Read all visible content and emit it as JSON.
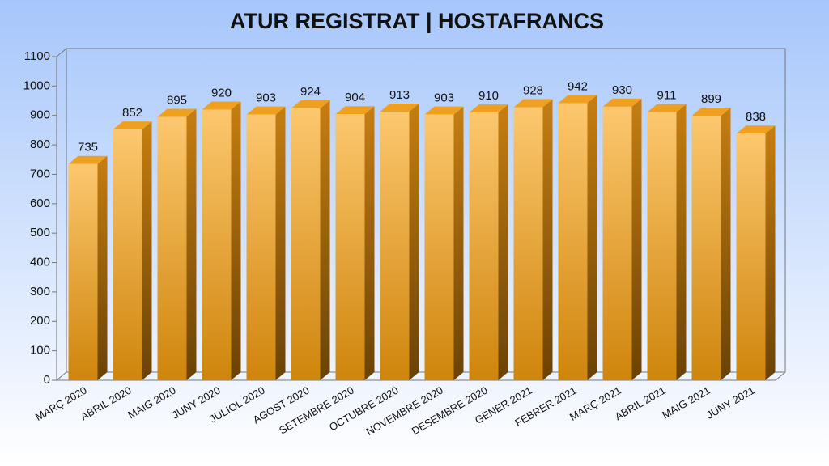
{
  "chart_data": {
    "type": "bar3d",
    "title": "ATUR REGISTRAT  |  HOSTAFRANCS",
    "categories": [
      "MARÇ 2020",
      "ABRIL 2020",
      "MAIG 2020",
      "JUNY 2020",
      "JULIOL 2020",
      "AGOST 2020",
      "SETEMBRE 2020",
      "OCTUBRE 2020",
      "NOVEMBRE 2020",
      "DESEMBRE 2020",
      "GENER 2021",
      "FEBRER 2021",
      "MARÇ 2021",
      "ABRIL 2021",
      "MAIG 2021",
      "JUNY 2021"
    ],
    "values": [
      735,
      852,
      895,
      920,
      903,
      924,
      904,
      913,
      903,
      910,
      928,
      942,
      930,
      911,
      899,
      838
    ],
    "color": "#f0a020",
    "ylim": [
      0,
      1100
    ],
    "yticks": [
      0,
      100,
      200,
      300,
      400,
      500,
      600,
      700,
      800,
      900,
      1000,
      1100
    ]
  }
}
